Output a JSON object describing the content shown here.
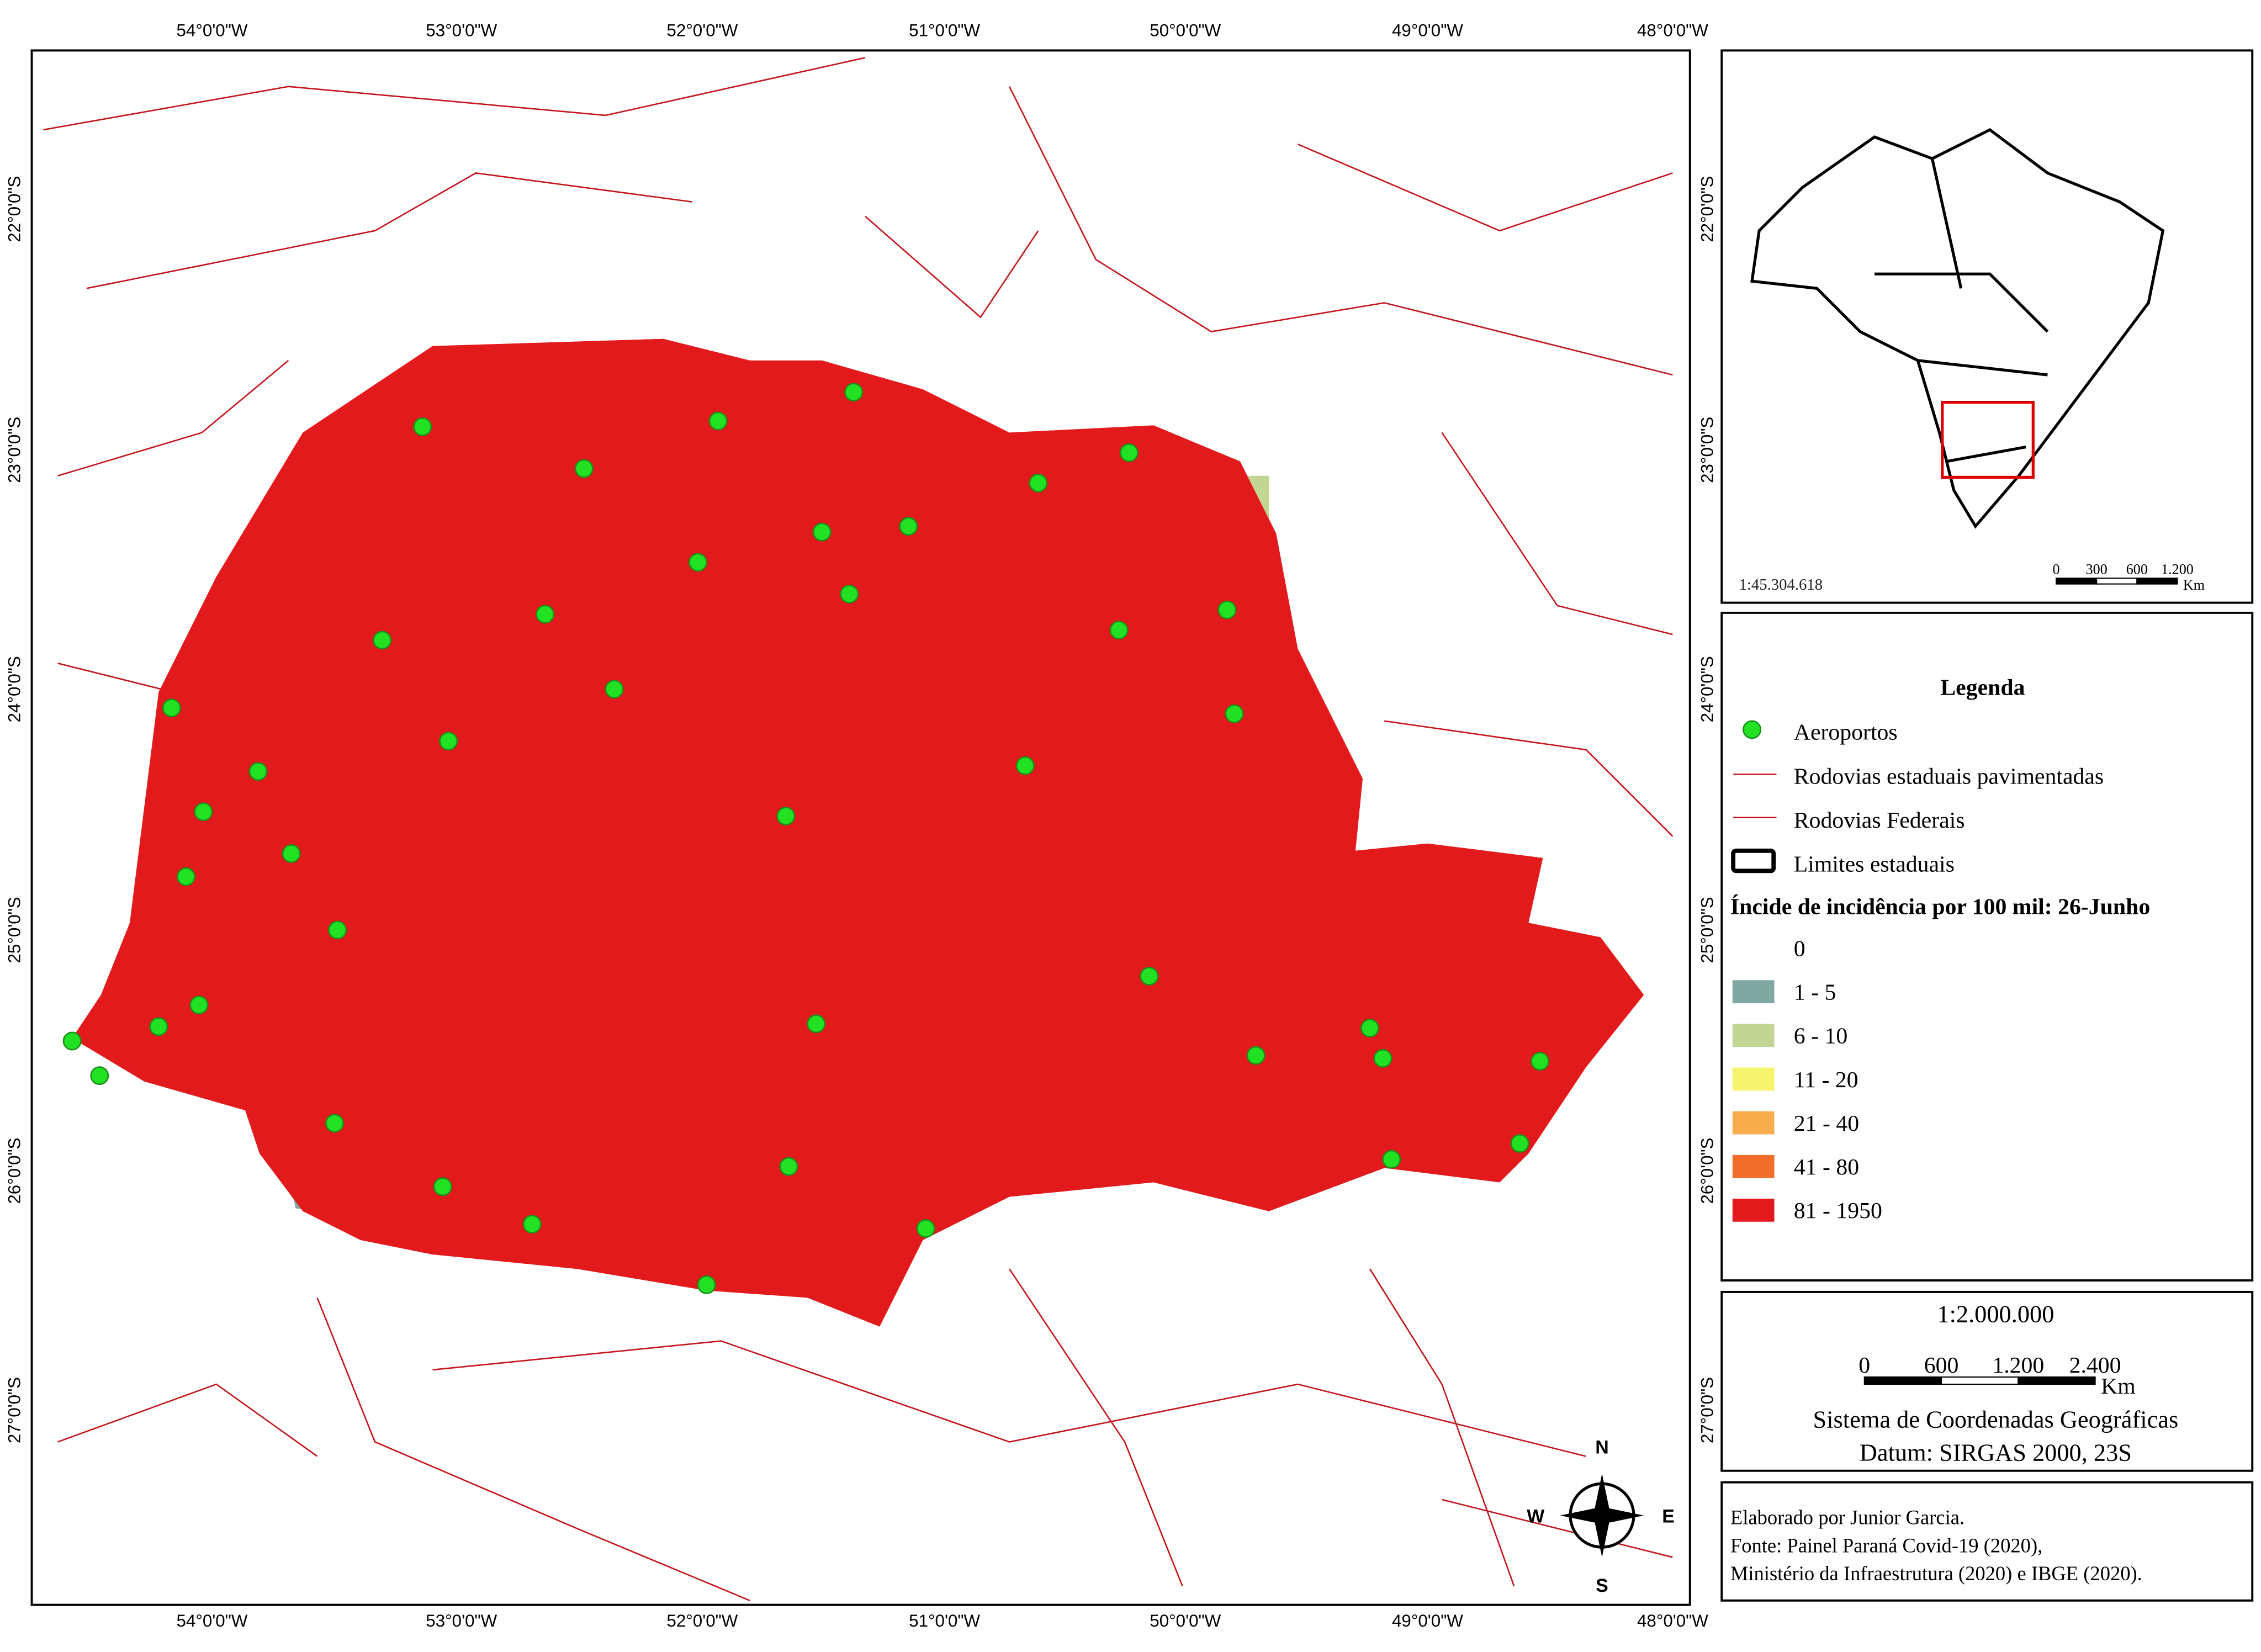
{
  "map": {
    "longitude_labels": [
      "54°0'0\"W",
      "53°0'0\"W",
      "52°0'0\"W",
      "51°0'0\"W",
      "50°0'0\"W",
      "49°0'0\"W",
      "48°0'0\"W"
    ],
    "latitude_labels": [
      "22°0'0\"S",
      "23°0'0\"S",
      "24°0'0\"S",
      "25°0'0\"S",
      "26°0'0\"S",
      "27°0'0\"S"
    ],
    "north_arrow": {
      "n": "N",
      "e": "E",
      "s": "S",
      "w": "W"
    }
  },
  "inset": {
    "scale": "1:45.304.618",
    "scalebar": [
      "0",
      "300",
      "600",
      "1.200"
    ],
    "unit": "Km"
  },
  "legend": {
    "title": "Legenda",
    "items": [
      "Aeroportos",
      "Rodovias estaduais pavimentadas",
      "Rodovias Federais",
      "Limites estaduais"
    ],
    "classes_title": "Íncide de incidência por 100 mil: 26-Junho",
    "classes": [
      {
        "label": "0",
        "color": "#ffffff"
      },
      {
        "label": "1 - 5",
        "color": "#7fa8a3"
      },
      {
        "label": "6 - 10",
        "color": "#c3d593"
      },
      {
        "label": "11 - 20",
        "color": "#f6f36d"
      },
      {
        "label": "21 - 40",
        "color": "#f8ad4c"
      },
      {
        "label": "41 - 80",
        "color": "#f06e2a"
      },
      {
        "label": "81 - 1950",
        "color": "#e31a1c"
      }
    ]
  },
  "scale_box": {
    "ratio": "1:2.000.000",
    "scalebar": [
      "0",
      "600",
      "1.200",
      "2.400"
    ],
    "unit": "Km",
    "crs": "Sistema de Coordenadas Geográficas",
    "datum": "Datum: SIRGAS 2000, 23S"
  },
  "credits": [
    "Elaborado por Junior Garcia.",
    "Fonte: Painel Paraná Covid-19 (2020),",
    "Ministério da Infraestrutura (2020) e IBGE (2020)."
  ]
}
